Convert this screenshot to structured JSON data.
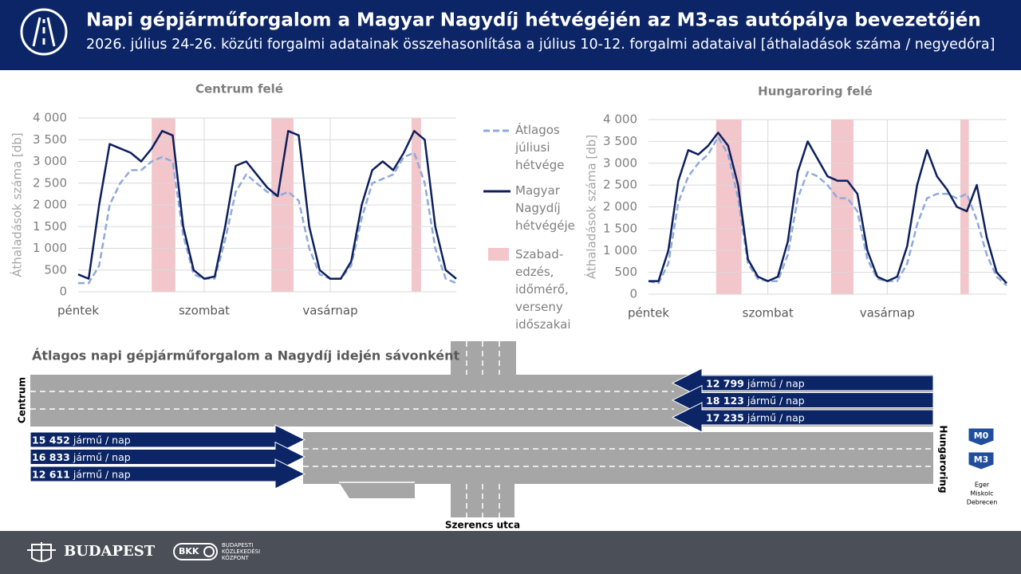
{
  "header": {
    "title": "Napi gépjárműforgalom a Magyar Nagydíj hétvégéjén az M3-as autópálya bevezetőjén",
    "subtitle": "2026. július 24-26. közúti forgalmi adatainak összehasonlítása a július 10-12. forgalmi adataival [áthaladások száma / negyedóra]"
  },
  "chart_data": [
    {
      "type": "line",
      "title": "Centrum felé",
      "ylabel": "Áthaladások száma [db]",
      "categories": [
        "péntek",
        null,
        null,
        null,
        null,
        null,
        null,
        null,
        null,
        null,
        null,
        null,
        "szombat",
        null,
        null,
        null,
        null,
        null,
        null,
        null,
        null,
        null,
        null,
        null,
        "vasárnap",
        null,
        null,
        null,
        null,
        null,
        null,
        null,
        null,
        null,
        null,
        null,
        null
      ],
      "series": [
        {
          "name": "Átlagos júliusi hétvége",
          "color": "#8eaadb",
          "dash": true,
          "values": [
            200,
            200,
            600,
            2000,
            2500,
            2800,
            2800,
            3000,
            3100,
            3000,
            1300,
            400,
            300,
            300,
            1200,
            2300,
            2700,
            2500,
            2300,
            2200,
            2300,
            2100,
            1000,
            400,
            300,
            300,
            600,
            1700,
            2500,
            2600,
            2700,
            3100,
            3200,
            2500,
            1000,
            300,
            200
          ]
        },
        {
          "name": "Magyar Nagydíj hétvégéje",
          "color": "#0d1f5c",
          "dash": false,
          "values": [
            400,
            300,
            2000,
            3400,
            3300,
            3200,
            3000,
            3300,
            3700,
            3600,
            1500,
            500,
            300,
            350,
            1500,
            2900,
            3000,
            2700,
            2400,
            2200,
            3700,
            3600,
            1500,
            500,
            300,
            300,
            700,
            2000,
            2800,
            3000,
            2800,
            3200,
            3700,
            3500,
            1500,
            500,
            300
          ]
        }
      ],
      "ylim": [
        0,
        4000
      ],
      "yticks": [
        0,
        500,
        {
          "value": 1000,
          "label": "1 000"
        },
        {
          "value": 1500,
          "label": "1 500"
        },
        {
          "value": 2000,
          "label": "2 000"
        },
        {
          "value": 2500,
          "label": "2 500"
        },
        {
          "value": 3000,
          "label": "3 000"
        },
        {
          "value": 3500,
          "label": "3 500"
        },
        {
          "value": 4000,
          "label": "4 000"
        }
      ],
      "grid": true,
      "highlight_label": "Szabad-edzés, időmérő, verseny időszakai",
      "highlight_color": "#f2c6cb",
      "highlights": [
        [
          7,
          9.25
        ],
        [
          18.4,
          20.5
        ],
        [
          31.75,
          32.65
        ]
      ]
    },
    {
      "type": "line",
      "title": "Hungaroring felé",
      "ylabel": "Áthaladások száma [db]",
      "categories": [
        "péntek",
        null,
        null,
        null,
        null,
        null,
        null,
        null,
        null,
        null,
        null,
        null,
        "szombat",
        null,
        null,
        null,
        null,
        null,
        null,
        null,
        null,
        null,
        null,
        null,
        "vasárnap",
        null,
        null,
        null,
        null,
        null,
        null,
        null,
        null,
        null,
        null,
        null,
        null
      ],
      "series": [
        {
          "color": "#8eaadb",
          "dash": true,
          "values": [
            300,
            250,
            700,
            2100,
            2700,
            3000,
            3200,
            3600,
            3200,
            2200,
            700,
            350,
            300,
            300,
            900,
            2200,
            2800,
            2700,
            2500,
            2200,
            2200,
            1900,
            800,
            350,
            300,
            300,
            700,
            1600,
            2200,
            2300,
            2300,
            2200,
            2300,
            1700,
            900,
            400,
            200
          ]
        },
        {
          "color": "#0d1f5c",
          "dash": false,
          "values": [
            300,
            300,
            1000,
            2600,
            3300,
            3200,
            3400,
            3700,
            3400,
            2500,
            800,
            400,
            300,
            400,
            1200,
            2800,
            3500,
            3100,
            2700,
            2600,
            2600,
            2300,
            1000,
            400,
            300,
            400,
            1100,
            2500,
            3300,
            2700,
            2400,
            2000,
            1900,
            2500,
            1300,
            500,
            250
          ]
        }
      ],
      "ylim": [
        0,
        4000
      ],
      "yticks": [
        0,
        500,
        {
          "value": 1000,
          "label": "1 000"
        },
        {
          "value": 1500,
          "label": "1 500"
        },
        {
          "value": 2000,
          "label": "2 000"
        },
        {
          "value": 2500,
          "label": "2 500"
        },
        {
          "value": 3000,
          "label": "3 000"
        },
        {
          "value": 3500,
          "label": "3 500"
        },
        {
          "value": 4000,
          "label": "4 000"
        }
      ],
      "grid": true,
      "highlight_color": "#f2c6cb",
      "highlights": [
        [
          6.8,
          9.35
        ],
        [
          18.35,
          20.6
        ],
        [
          31.35,
          32.2
        ]
      ]
    }
  ],
  "diagram": {
    "title": "Átlagos napi gépjárműforgalom a Nagydíj idején sávonként",
    "left_label": "Centrum",
    "right_label": "Hungaroring",
    "street": "Szerencs utca",
    "unit": "jármű / nap",
    "to_centrum": [
      "12 799",
      "18 123",
      "17 235"
    ],
    "to_hungaroring": [
      "15 452",
      "16 833",
      "12 611"
    ],
    "signs": [
      "M0",
      "M3"
    ],
    "destinations": [
      "Eger",
      "Miskolc",
      "Debrecen"
    ]
  },
  "footer": {
    "city": "BUDAPEST",
    "bkk": "BKK",
    "bkk_name": [
      "BUDAPESTI",
      "KÖZLEKEDÉSI",
      "KÖZPONT"
    ]
  }
}
